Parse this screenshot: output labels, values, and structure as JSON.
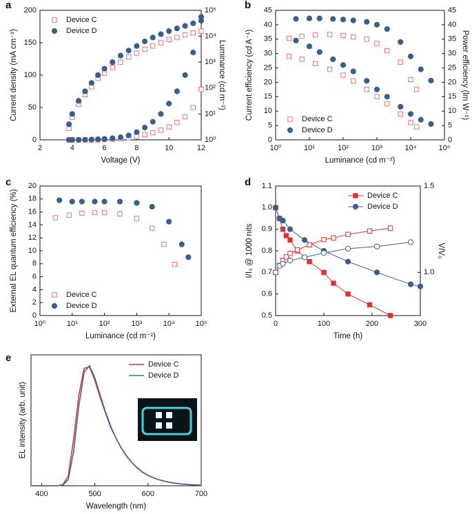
{
  "chart_data": [
    {
      "type": "line",
      "label": "a",
      "xlabel": "Voltage (V)",
      "ylabel": "Current density (mA cm⁻²)",
      "y2label": "Luminance (cd m⁻²)",
      "xlim": [
        2,
        12
      ],
      "xticks": [
        2,
        4,
        6,
        8,
        10,
        12
      ],
      "ylim": [
        0,
        200
      ],
      "yticks": [
        0,
        50,
        100,
        150,
        200
      ],
      "y2lim": [
        1,
        100000
      ],
      "y2scale": "log",
      "y2ticks": [
        {
          "value": 1,
          "label": "10⁰"
        },
        {
          "value": 10,
          "label": "10¹"
        },
        {
          "value": 100,
          "label": "10²"
        },
        {
          "value": 1000,
          "label": "10³"
        },
        {
          "value": 10000,
          "label": "10⁴"
        },
        {
          "value": 100000,
          "label": "10⁵"
        }
      ],
      "legend": "upper left",
      "x": [
        3.8,
        4.0,
        4.4,
        4.8,
        5.2,
        5.6,
        6.0,
        6.5,
        7,
        7.5,
        8,
        8.5,
        9,
        9.5,
        10,
        10.5,
        11,
        11.5,
        12
      ],
      "series": [
        {
          "name": "Device C",
          "color": "#e8707a",
          "marker": "square",
          "filled": false,
          "values": [
            0,
            0,
            0,
            0,
            0,
            0,
            0.5,
            1,
            2,
            3,
            5,
            8,
            11,
            15,
            20,
            27,
            36,
            50,
            78
          ]
        },
        {
          "name": "Device D",
          "color": "#3a5f8a",
          "marker": "circle",
          "filled": true,
          "values": [
            0,
            0,
            0,
            0.2,
            0.5,
            1,
            1.5,
            2.5,
            4,
            7,
            12,
            19,
            28,
            40,
            56,
            75,
            100,
            135,
            190
          ]
        },
        {
          "color": "#e8707a",
          "marker": "square",
          "filled": false,
          "axis": "y2",
          "values": [
            2.8,
            7.5,
            24,
            56,
            112,
            237,
            375,
            630,
            1000,
            1580,
            2240,
            3160,
            4200,
            5600,
            7500,
            8900,
            11200,
            13300,
            15800
          ]
        },
        {
          "color": "#3a5f8a",
          "marker": "circle",
          "filled": true,
          "axis": "y2",
          "values": [
            4,
            10,
            32,
            75,
            158,
            316,
            560,
            1000,
            1780,
            2800,
            4200,
            6300,
            8900,
            12000,
            15800,
            20000,
            25000,
            31600,
            40000
          ]
        }
      ]
    },
    {
      "type": "line",
      "label": "b",
      "xlabel": "Luminance (cd m⁻²)",
      "ylabel": "Current efficiency (cd A⁻¹)",
      "y2label": "Power efficiency (lm W⁻¹)",
      "xlim": [
        1,
        100000
      ],
      "xscale": "log",
      "xticks": [
        {
          "value": 1,
          "label": "10⁰"
        },
        {
          "value": 10,
          "label": "10¹"
        },
        {
          "value": 100,
          "label": "10²"
        },
        {
          "value": 1000,
          "label": "10³"
        },
        {
          "value": 10000,
          "label": "10⁴"
        },
        {
          "value": 100000,
          "label": "10⁵"
        }
      ],
      "ylim": [
        0,
        45
      ],
      "yticks": [
        0,
        5,
        10,
        15,
        20,
        25,
        30,
        35,
        40,
        45
      ],
      "y2lim": [
        0,
        45
      ],
      "y2ticks": [
        0,
        5,
        10,
        15,
        20,
        25,
        30,
        35,
        40,
        45
      ],
      "legend": "lower left",
      "series": [
        {
          "name": "Device C",
          "color": "#e8707a",
          "marker": "square",
          "filled": false,
          "x": [
            2.5,
            6,
            15,
            40,
            100,
            200,
            500,
            1000,
            2000,
            5000,
            10000,
            15000
          ],
          "values": [
            35.3,
            36,
            36.5,
            36.6,
            36.3,
            35.8,
            35,
            33.5,
            31,
            27,
            21,
            17.5
          ]
        },
        {
          "name": "Device D",
          "color": "#3a5f8a",
          "marker": "circle",
          "filled": true,
          "x": [
            4,
            10,
            20,
            50,
            100,
            200,
            500,
            1000,
            2000,
            5000,
            10000,
            20000,
            40000
          ],
          "values": [
            42,
            42.2,
            42.2,
            42,
            41.8,
            41.5,
            41,
            40,
            38.5,
            34,
            29,
            24.5,
            20.6
          ]
        },
        {
          "color": "#e8707a",
          "marker": "square",
          "filled": false,
          "axis": "y2",
          "x": [
            2.5,
            6,
            15,
            40,
            100,
            200,
            500,
            1000,
            2000,
            5000,
            10000,
            15000
          ],
          "values": [
            29,
            28,
            26.5,
            24.5,
            22.5,
            20.5,
            17.5,
            15,
            12.5,
            9,
            6,
            4.5
          ]
        },
        {
          "color": "#3a5f8a",
          "marker": "circle",
          "filled": true,
          "axis": "y2",
          "x": [
            4,
            10,
            20,
            50,
            100,
            200,
            500,
            1000,
            2000,
            5000,
            10000,
            20000,
            40000
          ],
          "values": [
            34.5,
            32.5,
            30.5,
            28,
            26,
            23.8,
            20.5,
            17.5,
            15,
            11.5,
            9,
            7,
            5.5
          ]
        }
      ]
    },
    {
      "type": "line",
      "label": "c",
      "xlabel": "Luminance (cd m⁻²)",
      "ylabel": "External EL quantum efficiency (%)",
      "xlim": [
        1,
        100000
      ],
      "xscale": "log",
      "xticks": [
        {
          "value": 1,
          "label": "10⁰"
        },
        {
          "value": 10,
          "label": "10¹"
        },
        {
          "value": 100,
          "label": "10²"
        },
        {
          "value": 1000,
          "label": "10³"
        },
        {
          "value": 10000,
          "label": "10⁴"
        },
        {
          "value": 100000,
          "label": "10⁵"
        }
      ],
      "ylim": [
        0,
        20
      ],
      "yticks": [
        0,
        2,
        4,
        6,
        8,
        10,
        12,
        14,
        16,
        18,
        20
      ],
      "legend": "lower left",
      "series": [
        {
          "name": "Device C",
          "color": "#e8707a",
          "marker": "square",
          "filled": false,
          "x": [
            3,
            8,
            20,
            50,
            100,
            300,
            1000,
            3000,
            7000,
            15000
          ],
          "values": [
            15.1,
            15.5,
            15.8,
            15.9,
            15.9,
            15.7,
            15,
            13.5,
            11,
            7.9
          ]
        },
        {
          "name": "Device D",
          "color": "#3a5f8a",
          "marker": "circle",
          "filled": true,
          "x": [
            4,
            10,
            20,
            50,
            100,
            300,
            1000,
            3000,
            10000,
            25000,
            40000
          ],
          "values": [
            17.8,
            17.6,
            17.6,
            17.6,
            17.6,
            17.6,
            17.4,
            16.8,
            14.5,
            11,
            9
          ]
        }
      ]
    },
    {
      "type": "line",
      "label": "d",
      "xlabel": "Time (h)",
      "ylabel": "I/I₀ @ 1000 nits",
      "y2label": "V/V₀",
      "xlim": [
        0,
        300
      ],
      "xticks": [
        0,
        100,
        200,
        300
      ],
      "ylim": [
        0.5,
        1.1
      ],
      "yticks": [
        0.5,
        0.6,
        0.7,
        0.8,
        0.9,
        {
          "value": 1,
          "label": "1.0"
        },
        1.1
      ],
      "y2lim": [
        0.75,
        1.5
      ],
      "y2ticks": [
        {
          "value": 1,
          "label": "1.0"
        },
        1.5
      ],
      "legend": "upper right",
      "series": [
        {
          "name": "Device C",
          "color": "#e03030",
          "marker": "square",
          "filled": true,
          "line": true,
          "x": [
            0,
            8,
            15,
            22,
            30,
            45,
            70,
            100,
            120,
            150,
            195,
            238
          ],
          "values": [
            1.0,
            0.95,
            0.9,
            0.87,
            0.85,
            0.8,
            0.75,
            0.7,
            0.65,
            0.6,
            0.55,
            0.5
          ]
        },
        {
          "name": "Device D",
          "color": "#3a5f8a",
          "marker": "circle",
          "filled": true,
          "line": true,
          "x": [
            0,
            8,
            15,
            30,
            60,
            100,
            150,
            210,
            280,
            300
          ],
          "values": [
            1.0,
            0.95,
            0.94,
            0.9,
            0.85,
            0.8,
            0.75,
            0.7,
            0.645,
            0.635
          ]
        },
        {
          "color": "#e03030",
          "marker": "square",
          "filled": false,
          "line": true,
          "axis": "y2",
          "x": [
            0,
            8,
            15,
            22,
            30,
            45,
            70,
            100,
            120,
            150,
            195,
            238
          ],
          "values": [
            1.0,
            1.04,
            1.07,
            1.09,
            1.11,
            1.13,
            1.16,
            1.19,
            1.2,
            1.22,
            1.24,
            1.256
          ]
        },
        {
          "color": "#3a5f8a",
          "marker": "circle",
          "filled": false,
          "line": true,
          "axis": "y2",
          "x": [
            0,
            8,
            15,
            30,
            60,
            100,
            150,
            210,
            280
          ],
          "values": [
            1.0,
            1.0375,
            1.05,
            1.069,
            1.0875,
            1.1125,
            1.1375,
            1.15,
            1.175
          ]
        }
      ]
    },
    {
      "type": "line",
      "label": "e",
      "xlabel": "Wavelength (nm)",
      "ylabel": "EL intensity (arb. unit)",
      "xlim": [
        380,
        700
      ],
      "xticks": [
        400,
        500,
        600,
        700
      ],
      "ylim": [
        0,
        1.08
      ],
      "legend": "upper right",
      "x": [
        380,
        390,
        400,
        410,
        420,
        430,
        440,
        450,
        460,
        470,
        480,
        490,
        500,
        510,
        520,
        530,
        540,
        550,
        560,
        570,
        580,
        590,
        600,
        610,
        620,
        630,
        640,
        650,
        660,
        670,
        680,
        690,
        700
      ],
      "series": [
        {
          "name": "Device C",
          "color": "#e0303a",
          "marker": "none",
          "line": true,
          "values": [
            0,
            0,
            0,
            0,
            0,
            0,
            0.01,
            0.08,
            0.38,
            0.75,
            0.97,
            0.98,
            0.87,
            0.73,
            0.6,
            0.48,
            0.39,
            0.31,
            0.24,
            0.19,
            0.145,
            0.11,
            0.085,
            0.065,
            0.05,
            0.038,
            0.028,
            0.021,
            0.016,
            0.012,
            0.009,
            0.007,
            0.005
          ]
        },
        {
          "name": "Device D",
          "color": "#3d6a9a",
          "marker": "none",
          "line": true,
          "values": [
            0,
            0,
            0,
            0,
            0,
            0,
            0.005,
            0.05,
            0.28,
            0.66,
            0.94,
            0.99,
            0.89,
            0.75,
            0.61,
            0.49,
            0.39,
            0.31,
            0.245,
            0.19,
            0.148,
            0.112,
            0.087,
            0.066,
            0.051,
            0.039,
            0.029,
            0.022,
            0.016,
            0.012,
            0.009,
            0.007,
            0.005
          ]
        }
      ]
    }
  ]
}
